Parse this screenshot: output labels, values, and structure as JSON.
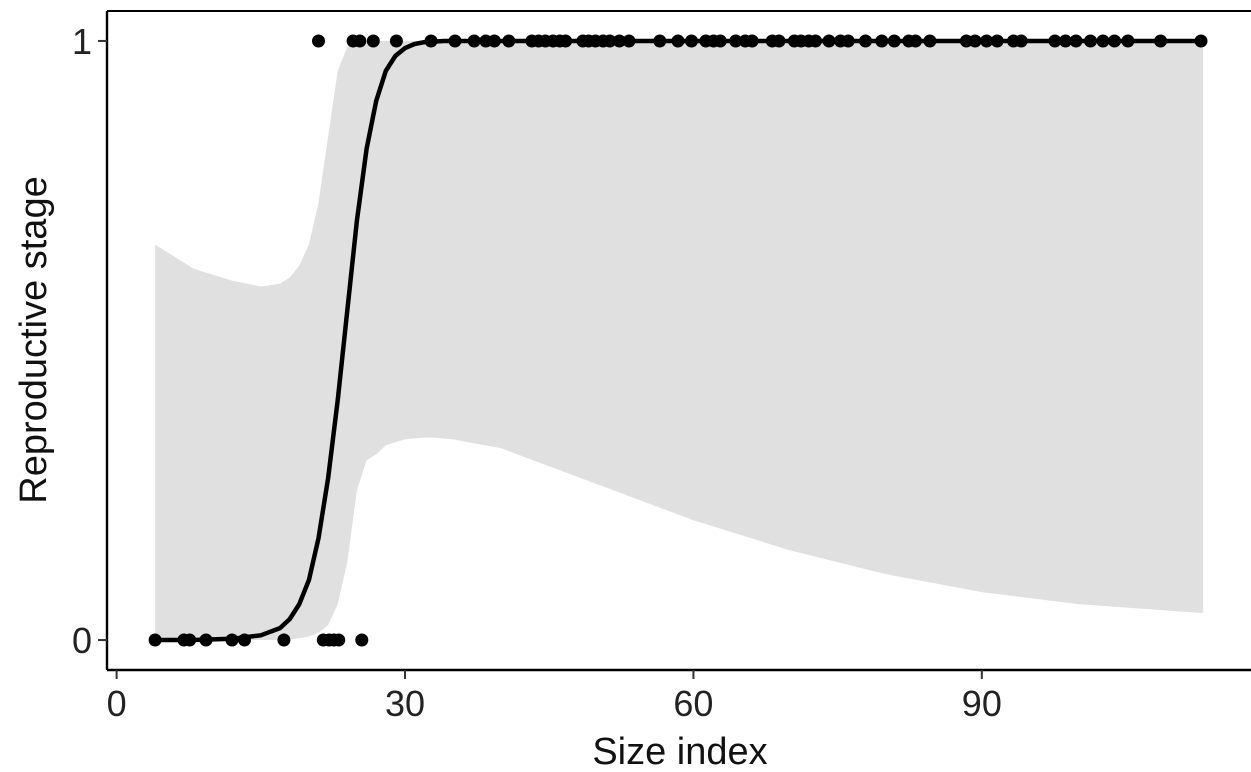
{
  "chart_data": {
    "type": "scatter",
    "title": "",
    "xlabel": "Size index",
    "ylabel": "Reproductive stage",
    "xlim": [
      -1,
      118
    ],
    "ylim": [
      -0.05,
      1.05
    ],
    "x_ticks": [
      0,
      30,
      60,
      90
    ],
    "x_tick_labels": [
      "0",
      "30",
      "60",
      "90"
    ],
    "y_ticks": [
      0,
      1
    ],
    "y_tick_labels": [
      "0",
      "1"
    ],
    "grid": false,
    "legend": "none",
    "colors": {
      "points": "#000000",
      "fit_line": "#000000",
      "confidence_band": "#e0e0e0",
      "axis": "#000000"
    },
    "points": [
      {
        "x": 4,
        "y": 0
      },
      {
        "x": 7,
        "y": 0
      },
      {
        "x": 7.6,
        "y": 0
      },
      {
        "x": 9.3,
        "y": 0
      },
      {
        "x": 12,
        "y": 0
      },
      {
        "x": 13.3,
        "y": 0
      },
      {
        "x": 17.4,
        "y": 0
      },
      {
        "x": 21.5,
        "y": 0
      },
      {
        "x": 22.1,
        "y": 0
      },
      {
        "x": 22.6,
        "y": 0
      },
      {
        "x": 23.1,
        "y": 0
      },
      {
        "x": 25.5,
        "y": 0
      },
      {
        "x": 21,
        "y": 1
      },
      {
        "x": 24.6,
        "y": 1
      },
      {
        "x": 25.3,
        "y": 1
      },
      {
        "x": 26.7,
        "y": 1
      },
      {
        "x": 29.1,
        "y": 1
      },
      {
        "x": 32.7,
        "y": 1
      },
      {
        "x": 35.2,
        "y": 1
      },
      {
        "x": 37.2,
        "y": 1
      },
      {
        "x": 38.4,
        "y": 1
      },
      {
        "x": 39.3,
        "y": 1
      },
      {
        "x": 40.8,
        "y": 1
      },
      {
        "x": 43.2,
        "y": 1
      },
      {
        "x": 43.9,
        "y": 1
      },
      {
        "x": 44.6,
        "y": 1
      },
      {
        "x": 45.4,
        "y": 1
      },
      {
        "x": 46.1,
        "y": 1
      },
      {
        "x": 46.7,
        "y": 1
      },
      {
        "x": 48.5,
        "y": 1
      },
      {
        "x": 49.1,
        "y": 1
      },
      {
        "x": 49.8,
        "y": 1
      },
      {
        "x": 50.6,
        "y": 1
      },
      {
        "x": 51.3,
        "y": 1
      },
      {
        "x": 52.3,
        "y": 1
      },
      {
        "x": 53.3,
        "y": 1
      },
      {
        "x": 56.5,
        "y": 1
      },
      {
        "x": 58.4,
        "y": 1
      },
      {
        "x": 59.8,
        "y": 1
      },
      {
        "x": 61.3,
        "y": 1
      },
      {
        "x": 62.1,
        "y": 1
      },
      {
        "x": 62.8,
        "y": 1
      },
      {
        "x": 64.4,
        "y": 1
      },
      {
        "x": 65.4,
        "y": 1
      },
      {
        "x": 66.1,
        "y": 1
      },
      {
        "x": 68.2,
        "y": 1
      },
      {
        "x": 68.9,
        "y": 1
      },
      {
        "x": 70.5,
        "y": 1
      },
      {
        "x": 71.2,
        "y": 1
      },
      {
        "x": 72.0,
        "y": 1
      },
      {
        "x": 72.7,
        "y": 1
      },
      {
        "x": 74.1,
        "y": 1
      },
      {
        "x": 75.3,
        "y": 1
      },
      {
        "x": 76.1,
        "y": 1
      },
      {
        "x": 77.9,
        "y": 1
      },
      {
        "x": 79.6,
        "y": 1
      },
      {
        "x": 80.9,
        "y": 1
      },
      {
        "x": 82.4,
        "y": 1
      },
      {
        "x": 83.1,
        "y": 1
      },
      {
        "x": 84.6,
        "y": 1
      },
      {
        "x": 88.4,
        "y": 1
      },
      {
        "x": 89.3,
        "y": 1
      },
      {
        "x": 90.5,
        "y": 1
      },
      {
        "x": 91.6,
        "y": 1
      },
      {
        "x": 93.3,
        "y": 1
      },
      {
        "x": 94.1,
        "y": 1
      },
      {
        "x": 97.6,
        "y": 1
      },
      {
        "x": 98.7,
        "y": 1
      },
      {
        "x": 99.8,
        "y": 1
      },
      {
        "x": 101.3,
        "y": 1
      },
      {
        "x": 102.6,
        "y": 1
      },
      {
        "x": 103.8,
        "y": 1
      },
      {
        "x": 105.2,
        "y": 1
      },
      {
        "x": 108.6,
        "y": 1
      },
      {
        "x": 112.8,
        "y": 1
      }
    ],
    "fit_curve": {
      "name": "",
      "x": [
        4,
        8,
        12,
        15,
        17,
        18,
        19,
        20,
        21,
        22,
        23,
        24,
        25,
        26,
        27,
        28,
        29,
        30,
        31,
        32,
        34,
        40,
        60,
        90,
        113
      ],
      "y": [
        0,
        0,
        0.002,
        0.008,
        0.02,
        0.035,
        0.06,
        0.1,
        0.17,
        0.27,
        0.4,
        0.55,
        0.7,
        0.82,
        0.9,
        0.95,
        0.975,
        0.988,
        0.995,
        0.998,
        1,
        1,
        1,
        1,
        1
      ]
    },
    "confidence_band": {
      "x": [
        4,
        8,
        12,
        15,
        17,
        18,
        19,
        20,
        21,
        22,
        23,
        24,
        25,
        26,
        27,
        28,
        29,
        30,
        31,
        32,
        33,
        35,
        40,
        50,
        60,
        70,
        80,
        90,
        100,
        113
      ],
      "lower": [
        0,
        0,
        0,
        0,
        0,
        0.001,
        0.003,
        0.006,
        0.012,
        0.025,
        0.06,
        0.13,
        0.25,
        0.3,
        0.31,
        0.325,
        0.33,
        0.335,
        0.337,
        0.338,
        0.338,
        0.335,
        0.32,
        0.26,
        0.2,
        0.15,
        0.11,
        0.08,
        0.06,
        0.045
      ],
      "upper": [
        0.66,
        0.62,
        0.6,
        0.59,
        0.595,
        0.605,
        0.625,
        0.66,
        0.73,
        0.84,
        0.95,
        0.99,
        1,
        1,
        1,
        1,
        1,
        1,
        1,
        1,
        1,
        1,
        1,
        1,
        1,
        1,
        1,
        1,
        1,
        1
      ]
    }
  }
}
